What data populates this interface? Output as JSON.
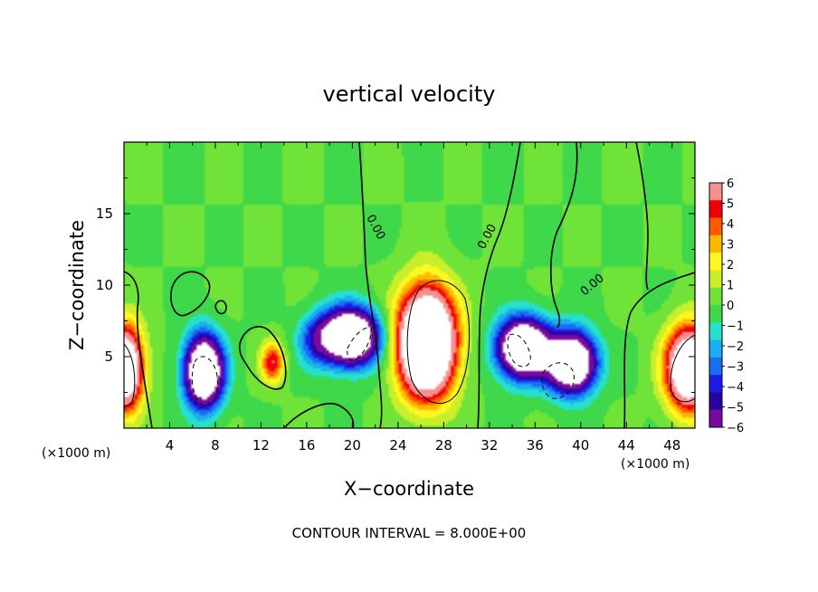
{
  "chart_data": {
    "type": "heatmap",
    "title": "vertical velocity",
    "xlabel": "X−coordinate",
    "ylabel": "Z−coordinate",
    "x_unit": "(×1000 m)",
    "xlim": [
      0,
      50
    ],
    "ylim": [
      0,
      20
    ],
    "x_ticks": [
      "4",
      "8",
      "12",
      "16",
      "20",
      "24",
      "28",
      "32",
      "36",
      "40",
      "44",
      "48"
    ],
    "y_ticks": [
      "5",
      "10",
      "15"
    ],
    "colorbar": {
      "ticks": [
        "6",
        "5",
        "4",
        "3",
        "2",
        "1",
        "0",
        "−1",
        "−2",
        "−3",
        "−4",
        "−5",
        "−6"
      ],
      "range": [
        -6,
        6
      ]
    },
    "contour_labels": [
      "0.00",
      "0.00",
      "0.00"
    ],
    "footer": "CONTOUR INTERVAL = 8.000E+00",
    "grid": false,
    "features": [
      {
        "kind": "updraft",
        "x": 26.5,
        "z": 6.0,
        "sx": 2.4,
        "sz": 3.6,
        "amp": 16
      },
      {
        "kind": "updraft",
        "x": 0.0,
        "z": 4.2,
        "sx": 1.6,
        "sz": 2.8,
        "amp": 12
      },
      {
        "kind": "updraft",
        "x": 49.5,
        "z": 4.2,
        "sx": 2.0,
        "sz": 2.8,
        "amp": 12
      },
      {
        "kind": "updraft",
        "x": 13.0,
        "z": 4.6,
        "sx": 1.0,
        "sz": 1.4,
        "amp": 5
      },
      {
        "kind": "downdraft",
        "x": 7.0,
        "z": 4.0,
        "sx": 1.6,
        "sz": 2.4,
        "amp": -13
      },
      {
        "kind": "downdraft",
        "x": 19.8,
        "z": 6.4,
        "sx": 2.4,
        "sz": 1.9,
        "amp": -13
      },
      {
        "kind": "downdraft",
        "x": 35.0,
        "z": 5.6,
        "sx": 2.2,
        "sz": 2.0,
        "amp": -13
      },
      {
        "kind": "downdraft",
        "x": 39.2,
        "z": 4.6,
        "sx": 2.0,
        "sz": 2.0,
        "amp": -13
      },
      {
        "kind": "downdraft",
        "x": 16.8,
        "z": 6.2,
        "sx": 1.6,
        "sz": 1.8,
        "amp": -3
      }
    ]
  }
}
